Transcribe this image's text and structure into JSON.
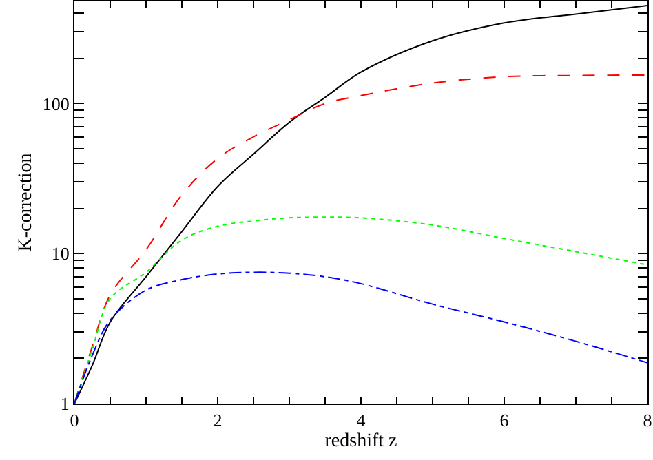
{
  "chart_data": {
    "type": "line",
    "xlabel": "redshift z",
    "ylabel": "K-correction",
    "log": "y",
    "xlim": [
      0,
      8
    ],
    "ylim": [
      1,
      480
    ],
    "xticks": [
      0,
      {
        "value": 0.5,
        "label": null
      },
      {
        "value": 1,
        "label": null
      },
      {
        "value": 1.5,
        "label": null
      },
      2,
      {
        "value": 2.5,
        "label": null
      },
      {
        "value": 3,
        "label": null
      },
      {
        "value": 3.5,
        "label": null
      },
      4,
      {
        "value": 4.5,
        "label": null
      },
      {
        "value": 5,
        "label": null
      },
      {
        "value": 5.5,
        "label": null
      },
      6,
      {
        "value": 6.5,
        "label": null
      },
      {
        "value": 7,
        "label": null
      },
      {
        "value": 7.5,
        "label": null
      },
      8
    ],
    "yticks": [
      1,
      {
        "value": 2,
        "label": null
      },
      {
        "value": 3,
        "label": null
      },
      {
        "value": 4,
        "label": null
      },
      {
        "value": 5,
        "label": null
      },
      {
        "value": 6,
        "label": null
      },
      {
        "value": 7,
        "label": null
      },
      {
        "value": 8,
        "label": null
      },
      {
        "value": 9,
        "label": null
      },
      10,
      {
        "value": 20,
        "label": null
      },
      {
        "value": 30,
        "label": null
      },
      {
        "value": 40,
        "label": null
      },
      {
        "value": 50,
        "label": null
      },
      {
        "value": 60,
        "label": null
      },
      {
        "value": 70,
        "label": null
      },
      {
        "value": 80,
        "label": null
      },
      {
        "value": 90,
        "label": null
      },
      100,
      {
        "value": 200,
        "label": null
      },
      {
        "value": 300,
        "label": null
      },
      {
        "value": 400,
        "label": null
      }
    ],
    "x": [
      0,
      0.25,
      0.5,
      1,
      1.5,
      2,
      2.5,
      3,
      3.5,
      4,
      5,
      6,
      7,
      8
    ],
    "series": [
      {
        "color": "#000000",
        "line_style": "solid",
        "values": [
          1,
          1.8,
          3.5,
          7,
          14,
          28,
          46,
          75,
          110,
          162,
          262,
          345,
          395,
          450
        ]
      },
      {
        "color": "#ff0000",
        "line_style": "dashed",
        "values": [
          1,
          2.4,
          5.3,
          10.6,
          24.6,
          43,
          60,
          78,
          100,
          113,
          137,
          151,
          154,
          155
        ]
      },
      {
        "color": "#00ff00",
        "line_style": "dotted",
        "values": [
          1,
          2.3,
          5,
          7.5,
          12.3,
          15.2,
          16.5,
          17.3,
          17.5,
          17.3,
          15.5,
          12.6,
          10.3,
          8.4
        ]
      },
      {
        "color": "#0000ff",
        "line_style": "dashdot",
        "values": [
          1,
          2.1,
          3.6,
          5.7,
          6.7,
          7.3,
          7.5,
          7.4,
          7,
          6.3,
          4.6,
          3.5,
          2.6,
          1.87
        ]
      }
    ]
  }
}
